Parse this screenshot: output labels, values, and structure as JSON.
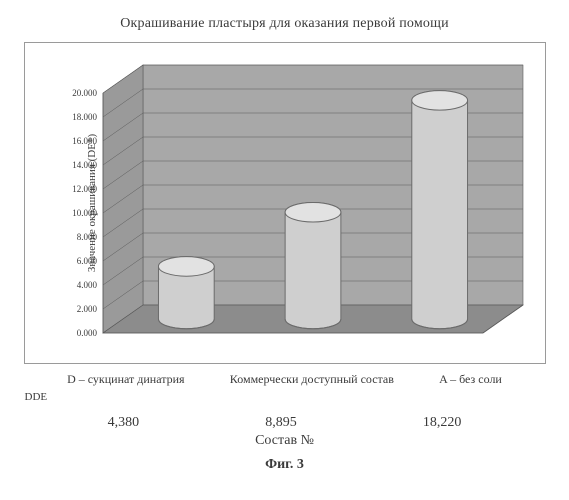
{
  "title": "Окрашивание пластыря для оказания первой помощи",
  "figure_label": "Фиг. 3",
  "axis_label": "Состав №",
  "series_legend_label": "DDE",
  "chart": {
    "type": "bar-3d-cylinder",
    "categories": [
      "D – сукцинат динатрия",
      "Коммерчески доступный состав",
      "A – без соли"
    ],
    "values": [
      4.38,
      8.895,
      18.22
    ],
    "value_labels": [
      "4,380",
      "8,895",
      "18,220"
    ],
    "ylabel": "Значение окрашивания (DE*)",
    "ylim": [
      0,
      20
    ],
    "ytick_step": 2,
    "ytick_labels": [
      "0.000",
      "2.000",
      "4.000",
      "6.000",
      "8.000",
      "10.000",
      "12.000",
      "14.000",
      "16.000",
      "18.000",
      "20.000"
    ],
    "cylinder_color": "#cfcfcf",
    "cylinder_stroke": "#6b6b6b",
    "floor_color": "#8c8c8c",
    "backwall_color": "#a8a8a8",
    "sidewall_color": "#9a9a9a",
    "grid_color": "#5a5a5a",
    "outer_border_color": "#9a9a9a",
    "background_color": "#ffffff",
    "label_fontsize": 11,
    "title_fontsize": 14
  }
}
